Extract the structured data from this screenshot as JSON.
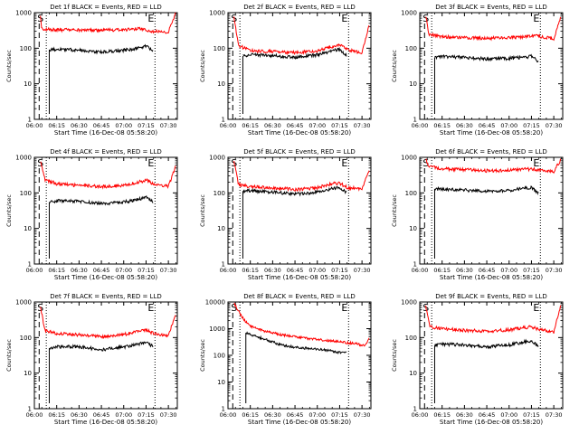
{
  "figure": {
    "x_title": "Start Time (16-Dec-08 05:58:20)",
    "y_title": "Counts/sec",
    "x_ticks": [
      "06:00",
      "06:15",
      "06:30",
      "06:45",
      "07:00",
      "07:15",
      "07:30"
    ],
    "y_ticks": [
      "1",
      "10",
      "100",
      "1000"
    ],
    "y_ticks_wide": [
      "1",
      "10",
      "100",
      "1000",
      "10000"
    ],
    "colors": {
      "events": "#000000",
      "lld": "#ff0000",
      "axes": "#000000"
    }
  },
  "chart_data": [
    {
      "type": "line",
      "title": "Det 1f BLACK = Events, RED = LLD",
      "xlabel": "Start Time (16-Dec-08 05:58:20)",
      "ylabel": "Counts/sec",
      "x_unit": "minutes after 06:00",
      "xlim": [
        "06:00",
        "07:36"
      ],
      "ylim": [
        1,
        1000
      ],
      "yscale": "log",
      "markers": {
        "S": "06:02",
        "E": "07:21"
      },
      "series": [
        {
          "values": [
            [
              4,
              800
            ],
            [
              5,
              350
            ],
            [
              15,
              330
            ],
            [
              30,
              320
            ],
            [
              45,
              320
            ],
            [
              60,
              330
            ],
            [
              70,
              350
            ],
            [
              80,
              300
            ],
            [
              90,
              280
            ],
            [
              95,
              1000
            ]
          ]
        },
        {
          "values": [
            [
              10,
              90
            ],
            [
              15,
              95
            ],
            [
              30,
              88
            ],
            [
              45,
              78
            ],
            [
              60,
              88
            ],
            [
              70,
              100
            ],
            [
              75,
              115
            ],
            [
              80,
              85
            ]
          ]
        }
      ]
    },
    {
      "type": "line",
      "title": "Det 2f BLACK = Events, RED = LLD",
      "xlabel": "Start Time (16-Dec-08 05:58:20)",
      "ylabel": "Counts/sec",
      "x_unit": "minutes after 06:00",
      "xlim": [
        "06:00",
        "07:36"
      ],
      "ylim": [
        1,
        1000
      ],
      "yscale": "log",
      "markers": {
        "S": "06:02",
        "E": "07:21"
      },
      "series": [
        {
          "values": [
            [
              4,
              800
            ],
            [
              7,
              120
            ],
            [
              15,
              85
            ],
            [
              30,
              80
            ],
            [
              45,
              75
            ],
            [
              60,
              85
            ],
            [
              70,
              110
            ],
            [
              75,
              130
            ],
            [
              80,
              90
            ],
            [
              90,
              75
            ],
            [
              95,
              500
            ]
          ]
        },
        {
          "values": [
            [
              10,
              60
            ],
            [
              15,
              65
            ],
            [
              30,
              62
            ],
            [
              45,
              55
            ],
            [
              60,
              65
            ],
            [
              70,
              85
            ],
            [
              75,
              95
            ],
            [
              80,
              60
            ]
          ]
        }
      ]
    },
    {
      "type": "line",
      "title": "Det 3f BLACK = Events, RED = LLD",
      "xlabel": "Start Time (16-Dec-08 05:58:20)",
      "ylabel": "Counts/sec",
      "x_unit": "minutes after 06:00",
      "xlim": [
        "06:00",
        "07:36"
      ],
      "ylim": [
        1,
        1000
      ],
      "yscale": "log",
      "markers": {
        "S": "06:02",
        "E": "07:21"
      },
      "series": [
        {
          "values": [
            [
              4,
              800
            ],
            [
              6,
              250
            ],
            [
              15,
              210
            ],
            [
              30,
              200
            ],
            [
              45,
              190
            ],
            [
              60,
              200
            ],
            [
              70,
              210
            ],
            [
              80,
              220
            ],
            [
              90,
              180
            ],
            [
              95,
              800
            ]
          ]
        },
        {
          "values": [
            [
              10,
              55
            ],
            [
              15,
              58
            ],
            [
              30,
              55
            ],
            [
              45,
              50
            ],
            [
              60,
              52
            ],
            [
              70,
              55
            ],
            [
              75,
              60
            ],
            [
              80,
              40
            ]
          ]
        }
      ]
    },
    {
      "type": "line",
      "title": "Det 4f BLACK = Events, RED = LLD",
      "xlabel": "Start Time (16-Dec-08 05:58:20)",
      "ylabel": "Counts/sec",
      "x_unit": "minutes after 06:00",
      "xlim": [
        "06:00",
        "07:36"
      ],
      "ylim": [
        1,
        1000
      ],
      "yscale": "log",
      "markers": {
        "S": "06:02",
        "E": "07:21"
      },
      "series": [
        {
          "values": [
            [
              4,
              800
            ],
            [
              7,
              240
            ],
            [
              15,
              180
            ],
            [
              30,
              160
            ],
            [
              45,
              150
            ],
            [
              60,
              160
            ],
            [
              70,
              200
            ],
            [
              75,
              230
            ],
            [
              80,
              180
            ],
            [
              90,
              150
            ],
            [
              95,
              600
            ]
          ]
        },
        {
          "values": [
            [
              10,
              55
            ],
            [
              15,
              60
            ],
            [
              30,
              58
            ],
            [
              45,
              50
            ],
            [
              60,
              55
            ],
            [
              70,
              65
            ],
            [
              75,
              75
            ],
            [
              80,
              55
            ]
          ]
        }
      ]
    },
    {
      "type": "line",
      "title": "Det 5f BLACK = Events, RED = LLD",
      "xlabel": "Start Time (16-Dec-08 05:58:20)",
      "ylabel": "Counts/sec",
      "x_unit": "minutes after 06:00",
      "xlim": [
        "06:00",
        "07:36"
      ],
      "ylim": [
        1,
        1000
      ],
      "yscale": "log",
      "markers": {
        "S": "06:02",
        "E": "07:21"
      },
      "series": [
        {
          "values": [
            [
              4,
              800
            ],
            [
              7,
              170
            ],
            [
              15,
              150
            ],
            [
              30,
              140
            ],
            [
              45,
              125
            ],
            [
              60,
              140
            ],
            [
              70,
              180
            ],
            [
              75,
              190
            ],
            [
              80,
              140
            ],
            [
              90,
              130
            ],
            [
              95,
              450
            ]
          ]
        },
        {
          "values": [
            [
              10,
              110
            ],
            [
              15,
              115
            ],
            [
              30,
              105
            ],
            [
              45,
              92
            ],
            [
              60,
              105
            ],
            [
              70,
              130
            ],
            [
              75,
              140
            ],
            [
              80,
              100
            ]
          ]
        }
      ]
    },
    {
      "type": "line",
      "title": "Det 6f BLACK = Events, RED = LLD",
      "xlabel": "Start Time (16-Dec-08 05:58:20)",
      "ylabel": "Counts/sec",
      "x_unit": "minutes after 06:00",
      "xlim": [
        "06:00",
        "07:36"
      ],
      "ylim": [
        1,
        1000
      ],
      "yscale": "log",
      "markers": {
        "S": "06:02",
        "E": "07:21"
      },
      "series": [
        {
          "values": [
            [
              4,
              900
            ],
            [
              6,
              550
            ],
            [
              15,
              480
            ],
            [
              30,
              450
            ],
            [
              45,
              420
            ],
            [
              60,
              430
            ],
            [
              70,
              460
            ],
            [
              75,
              470
            ],
            [
              80,
              440
            ],
            [
              90,
              400
            ],
            [
              95,
              900
            ]
          ]
        },
        {
          "values": [
            [
              10,
              130
            ],
            [
              15,
              128
            ],
            [
              30,
              120
            ],
            [
              45,
              110
            ],
            [
              60,
              118
            ],
            [
              70,
              135
            ],
            [
              75,
              140
            ],
            [
              80,
              95
            ]
          ]
        }
      ]
    },
    {
      "type": "line",
      "title": "Det 7f BLACK = Events, RED = LLD",
      "xlabel": "Start Time (16-Dec-08 05:58:20)",
      "ylabel": "Counts/sec",
      "x_unit": "minutes after 06:00",
      "xlim": [
        "06:00",
        "07:36"
      ],
      "ylim": [
        1,
        1000
      ],
      "yscale": "log",
      "markers": {
        "S": "06:02",
        "E": "07:21"
      },
      "series": [
        {
          "values": [
            [
              4,
              800
            ],
            [
              7,
              160
            ],
            [
              15,
              130
            ],
            [
              30,
              120
            ],
            [
              45,
              105
            ],
            [
              60,
              120
            ],
            [
              70,
              150
            ],
            [
              75,
              165
            ],
            [
              80,
              130
            ],
            [
              90,
              110
            ],
            [
              95,
              500
            ]
          ]
        },
        {
          "values": [
            [
              10,
              50
            ],
            [
              15,
              55
            ],
            [
              30,
              55
            ],
            [
              45,
              45
            ],
            [
              60,
              55
            ],
            [
              70,
              65
            ],
            [
              75,
              72
            ],
            [
              80,
              55
            ]
          ]
        }
      ]
    },
    {
      "type": "line",
      "title": "Det 8f BLACK = Events, RED = LLD",
      "xlabel": "Start Time (16-Dec-08 05:58:20)",
      "ylabel": "Counts/sec",
      "x_unit": "minutes after 06:00",
      "xlim": [
        "06:00",
        "07:36"
      ],
      "ylim": [
        1,
        10000
      ],
      "yscale": "log",
      "markers": {
        "S": "06:02",
        "E": "07:21"
      },
      "series": [
        {
          "values": [
            [
              4,
              9000
            ],
            [
              10,
              2500
            ],
            [
              15,
              1200
            ],
            [
              25,
              800
            ],
            [
              35,
              600
            ],
            [
              45,
              500
            ],
            [
              55,
              420
            ],
            [
              65,
              370
            ],
            [
              75,
              320
            ],
            [
              85,
              280
            ],
            [
              92,
              230
            ],
            [
              95,
              450
            ]
          ]
        },
        {
          "values": [
            [
              12,
              700
            ],
            [
              15,
              600
            ],
            [
              25,
              400
            ],
            [
              35,
              250
            ],
            [
              45,
              200
            ],
            [
              55,
              180
            ],
            [
              65,
              160
            ],
            [
              75,
              130
            ],
            [
              80,
              120
            ]
          ]
        }
      ]
    },
    {
      "type": "line",
      "title": "Det 9f BLACK = Events, RED = LLD",
      "xlabel": "Start Time (16-Dec-08 05:58:20)",
      "ylabel": "Counts/sec",
      "x_unit": "minutes after 06:00",
      "xlim": [
        "06:00",
        "07:36"
      ],
      "ylim": [
        1,
        1000
      ],
      "yscale": "log",
      "markers": {
        "S": "06:02",
        "E": "07:21"
      },
      "series": [
        {
          "values": [
            [
              4,
              800
            ],
            [
              7,
              200
            ],
            [
              15,
              180
            ],
            [
              30,
              160
            ],
            [
              45,
              150
            ],
            [
              60,
              165
            ],
            [
              70,
              190
            ],
            [
              75,
              200
            ],
            [
              80,
              170
            ],
            [
              90,
              140
            ],
            [
              95,
              900
            ]
          ]
        },
        {
          "values": [
            [
              10,
              60
            ],
            [
              15,
              65
            ],
            [
              30,
              62
            ],
            [
              45,
              55
            ],
            [
              60,
              62
            ],
            [
              70,
              75
            ],
            [
              75,
              80
            ],
            [
              80,
              55
            ]
          ]
        }
      ]
    }
  ]
}
